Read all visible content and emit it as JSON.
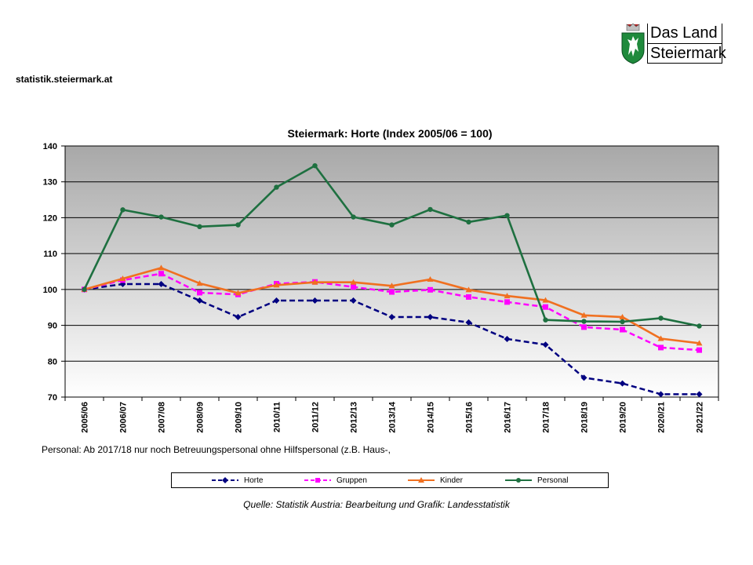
{
  "header": {
    "site": "statistik.steiermark.at",
    "logo_line1": "Das Land",
    "logo_line2": "Steiermark"
  },
  "note": "Personal: Ab 2017/18  nur noch Betreuungspersonal ohne Hilfspersonal (z.B. Haus-,",
  "source": "Quelle: Statistik Austria: Bearbeitung und Grafik: Landesstatistik",
  "chart_data": {
    "type": "line",
    "title": "Steiermark: Horte (Index 2005/06 = 100)",
    "xlabel": "",
    "ylabel": "",
    "ylim": [
      70,
      140
    ],
    "yticks": [
      70,
      80,
      90,
      100,
      110,
      120,
      130,
      140
    ],
    "grid": true,
    "legend_position": "bottom",
    "categories": [
      "2005/06",
      "2006/07",
      "2007/08",
      "2008/09",
      "2009/10",
      "2010/11",
      "2011/12",
      "2012/13",
      "2013/14",
      "2014/15",
      "2015/16",
      "2016/17",
      "2017/18",
      "2018/19",
      "2019/20",
      "2020/21",
      "2021/22"
    ],
    "series": [
      {
        "name": "Horte",
        "color": "#000080",
        "dash": "dash",
        "marker": "diamond",
        "values": [
          100,
          101.5,
          101.5,
          96.9,
          92.3,
          96.9,
          96.9,
          96.9,
          92.3,
          92.3,
          90.8,
          86.2,
          84.6,
          75.4,
          73.8,
          70.8,
          70.8
        ]
      },
      {
        "name": "Gruppen",
        "color": "#ff00ff",
        "dash": "dash",
        "marker": "square",
        "values": [
          100,
          102.6,
          104.4,
          99.1,
          98.6,
          101.6,
          102.1,
          100.7,
          99.3,
          99.9,
          97.9,
          96.5,
          95.1,
          89.5,
          88.8,
          83.8,
          83.1
        ]
      },
      {
        "name": "Kinder",
        "color": "#f07020",
        "dash": "solid",
        "marker": "triangle",
        "values": [
          100,
          103.0,
          106.0,
          101.7,
          99.0,
          101.2,
          102.0,
          102.0,
          101.0,
          102.8,
          99.9,
          98.2,
          97.0,
          92.8,
          92.3,
          86.3,
          85.0
        ]
      },
      {
        "name": "Personal",
        "color": "#1e7040",
        "dash": "solid",
        "marker": "circle",
        "values": [
          100,
          122.2,
          120.2,
          117.5,
          118.0,
          128.5,
          134.5,
          120.2,
          118.0,
          122.3,
          118.8,
          120.6,
          91.5,
          91.1,
          91.0,
          92.0,
          89.8
        ]
      }
    ]
  }
}
